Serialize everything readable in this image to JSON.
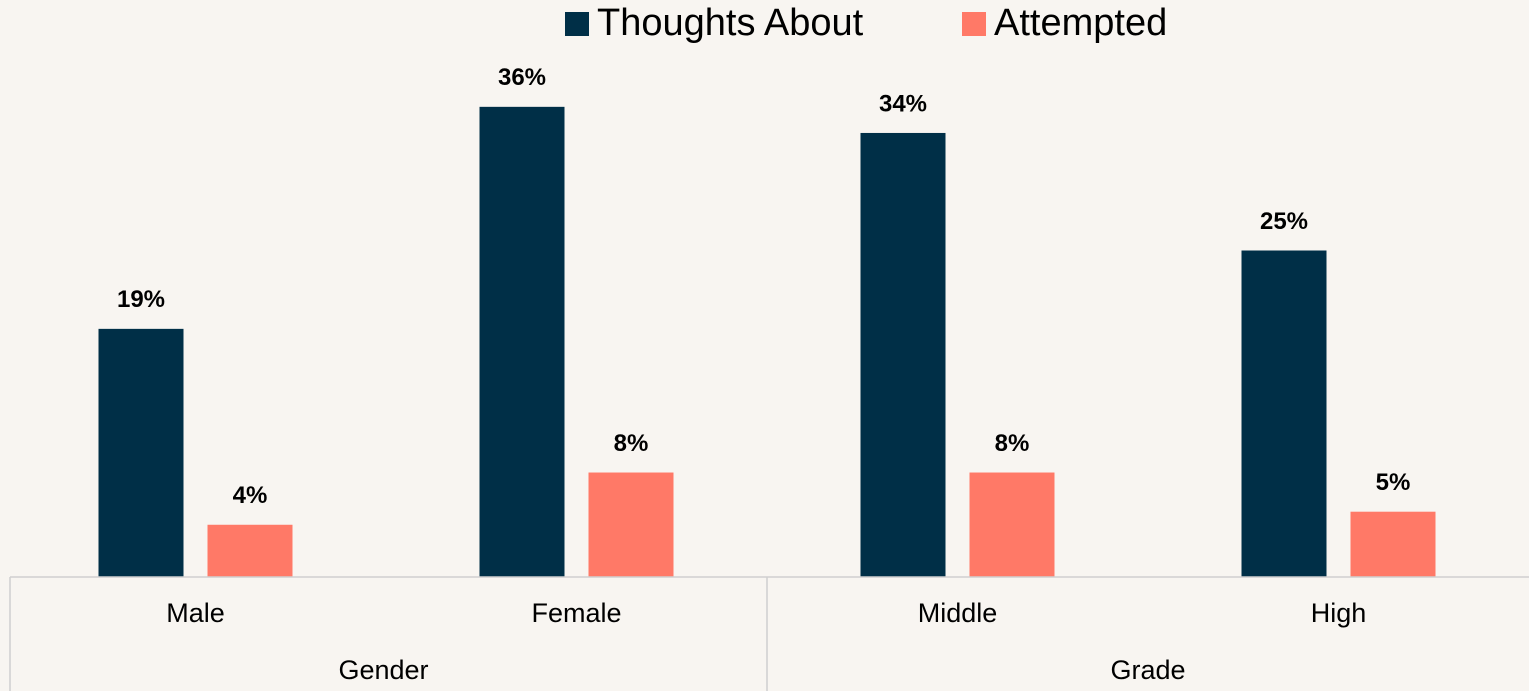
{
  "chart_data": {
    "type": "bar",
    "groups": [
      {
        "name": "Gender",
        "categories": [
          "Male",
          "Female"
        ]
      },
      {
        "name": "Grade",
        "categories": [
          "Middle",
          "High"
        ]
      }
    ],
    "series": [
      {
        "name": "Thoughts About",
        "color": "#002f47",
        "values": [
          19,
          36,
          34,
          25
        ],
        "value_labels": [
          "19%",
          "36%",
          "34%",
          "25%"
        ]
      },
      {
        "name": "Attempted",
        "color": "#ff7967",
        "values": [
          4,
          8,
          8,
          5
        ],
        "value_labels": [
          "4%",
          "8%",
          "8%",
          "5%"
        ]
      }
    ],
    "legend": "top"
  }
}
